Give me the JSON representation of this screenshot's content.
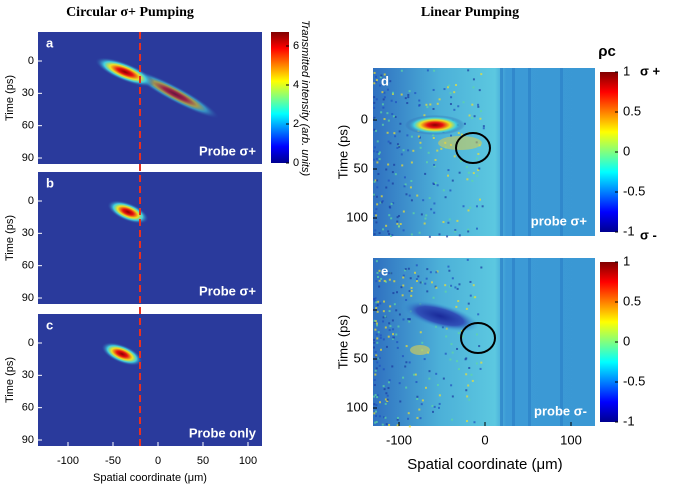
{
  "left": {
    "title": "Circular σ+ Pumping",
    "panels": [
      {
        "letter": "a",
        "caption": "Probe σ+"
      },
      {
        "letter": "b",
        "caption": "Probe σ+"
      },
      {
        "letter": "c",
        "caption": "Probe only"
      }
    ],
    "ylabel": "Time (ps)",
    "yticks": [
      0,
      30,
      60,
      90
    ],
    "xlabel": "Spatial coordinate (μm)",
    "xticks": [
      -100,
      -50,
      0,
      50,
      100
    ],
    "colorbar": {
      "label": "Transmitted intensity (arb. units)",
      "ticks": [
        0,
        2,
        4,
        6
      ]
    }
  },
  "right": {
    "title": "Linear Pumping",
    "panels": [
      {
        "letter": "d",
        "caption": "probe σ+"
      },
      {
        "letter": "e",
        "caption": "probe σ-"
      }
    ],
    "ylabel": "Time (ps)",
    "yticks": [
      0,
      50,
      100
    ],
    "xlabel": "Spatial coordinate (μm)",
    "xticks": [
      -100,
      0,
      100
    ],
    "colorbar": {
      "label": "ρc",
      "ticks": [
        1,
        0.5,
        0,
        -0.5,
        -1
      ],
      "top_symbol": "σ +",
      "bottom_symbol": "σ -"
    }
  }
}
